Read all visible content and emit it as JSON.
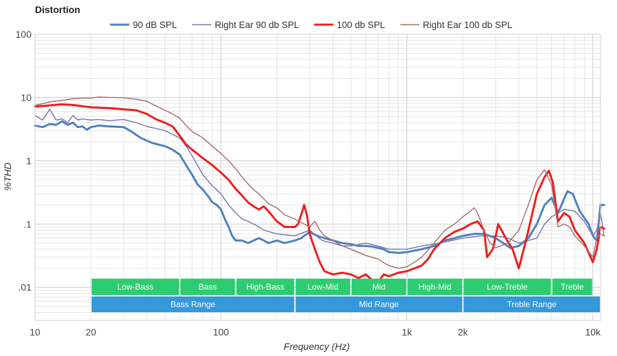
{
  "chart_data": {
    "type": "line",
    "title": "Distortion",
    "xlabel": "Frequency (Hz)",
    "ylabel": "%THD",
    "x_scale": "log",
    "y_scale": "log",
    "xlim": [
      10,
      11000
    ],
    "ylim": [
      0.003,
      100
    ],
    "grid": true,
    "legend_position": "top",
    "x_ticks": [
      {
        "value": 10,
        "label": "10"
      },
      {
        "value": 20,
        "label": "20"
      },
      {
        "value": 100,
        "label": "100"
      },
      {
        "value": 1000,
        "label": "1k"
      },
      {
        "value": 2000,
        "label": "2k"
      },
      {
        "value": 10000,
        "label": "10k"
      }
    ],
    "y_ticks": [
      {
        "value": 100,
        "label": "100"
      },
      {
        "value": 10,
        "label": "10"
      },
      {
        "value": 1,
        "label": "1"
      },
      {
        "value": 0.1,
        "label": ".1"
      },
      {
        "value": 0.01,
        "label": ".01"
      }
    ],
    "series": [
      {
        "name": "90 dB SPL",
        "color": "#4f81bd",
        "width": 3,
        "points": [
          [
            10,
            3.6
          ],
          [
            11,
            3.4
          ],
          [
            12,
            3.8
          ],
          [
            13,
            3.7
          ],
          [
            14,
            4.2
          ],
          [
            15,
            3.7
          ],
          [
            16,
            4.0
          ],
          [
            17,
            3.4
          ],
          [
            18,
            3.5
          ],
          [
            19,
            3.1
          ],
          [
            20,
            3.4
          ],
          [
            22,
            3.6
          ],
          [
            25,
            3.5
          ],
          [
            30,
            3.4
          ],
          [
            33,
            2.9
          ],
          [
            37,
            2.3
          ],
          [
            43,
            1.9
          ],
          [
            50,
            1.7
          ],
          [
            55,
            1.5
          ],
          [
            60,
            1.25
          ],
          [
            65,
            0.85
          ],
          [
            70,
            0.6
          ],
          [
            75,
            0.42
          ],
          [
            80,
            0.35
          ],
          [
            85,
            0.28
          ],
          [
            90,
            0.22
          ],
          [
            95,
            0.2
          ],
          [
            100,
            0.17
          ],
          [
            105,
            0.12
          ],
          [
            110,
            0.09
          ],
          [
            115,
            0.065
          ],
          [
            120,
            0.055
          ],
          [
            130,
            0.055
          ],
          [
            140,
            0.05
          ],
          [
            150,
            0.055
          ],
          [
            160,
            0.06
          ],
          [
            170,
            0.055
          ],
          [
            180,
            0.05
          ],
          [
            200,
            0.055
          ],
          [
            220,
            0.05
          ],
          [
            250,
            0.055
          ],
          [
            270,
            0.06
          ],
          [
            300,
            0.075
          ],
          [
            330,
            0.065
          ],
          [
            360,
            0.06
          ],
          [
            400,
            0.055
          ],
          [
            450,
            0.05
          ],
          [
            500,
            0.048
          ],
          [
            550,
            0.045
          ],
          [
            600,
            0.045
          ],
          [
            650,
            0.044
          ],
          [
            700,
            0.042
          ],
          [
            750,
            0.04
          ],
          [
            800,
            0.036
          ],
          [
            900,
            0.035
          ],
          [
            1000,
            0.036
          ],
          [
            1200,
            0.04
          ],
          [
            1400,
            0.045
          ],
          [
            1600,
            0.055
          ],
          [
            1800,
            0.06
          ],
          [
            2000,
            0.065
          ],
          [
            2300,
            0.07
          ],
          [
            2600,
            0.07
          ],
          [
            3000,
            0.06
          ],
          [
            3300,
            0.05
          ],
          [
            3600,
            0.042
          ],
          [
            4000,
            0.045
          ],
          [
            4500,
            0.06
          ],
          [
            5000,
            0.1
          ],
          [
            5500,
            0.2
          ],
          [
            6000,
            0.26
          ],
          [
            6500,
            0.15
          ],
          [
            7000,
            0.25
          ],
          [
            7300,
            0.33
          ],
          [
            7800,
            0.3
          ],
          [
            8500,
            0.16
          ],
          [
            9500,
            0.1
          ],
          [
            10000,
            0.065
          ],
          [
            10500,
            0.055
          ],
          [
            11000,
            0.2
          ],
          [
            11500,
            0.2
          ]
        ]
      },
      {
        "name": "Right Ear 90 db SPL",
        "color": "#7b79b0",
        "width": 1.5,
        "points": [
          [
            10,
            5.2
          ],
          [
            11,
            4.4
          ],
          [
            12,
            6.5
          ],
          [
            13,
            4.4
          ],
          [
            14,
            4.6
          ],
          [
            15,
            4.0
          ],
          [
            16,
            5.2
          ],
          [
            17,
            4.4
          ],
          [
            18,
            4.6
          ],
          [
            20,
            4.4
          ],
          [
            22,
            4.5
          ],
          [
            25,
            4.3
          ],
          [
            30,
            4.5
          ],
          [
            35,
            4.0
          ],
          [
            40,
            3.5
          ],
          [
            50,
            3.0
          ],
          [
            55,
            2.6
          ],
          [
            60,
            2.3
          ],
          [
            65,
            1.7
          ],
          [
            70,
            1.2
          ],
          [
            80,
            0.6
          ],
          [
            90,
            0.4
          ],
          [
            100,
            0.3
          ],
          [
            110,
            0.2
          ],
          [
            120,
            0.15
          ],
          [
            130,
            0.12
          ],
          [
            140,
            0.11
          ],
          [
            150,
            0.1
          ],
          [
            160,
            0.09
          ],
          [
            170,
            0.08
          ],
          [
            200,
            0.07
          ],
          [
            250,
            0.065
          ],
          [
            300,
            0.08
          ],
          [
            350,
            0.055
          ],
          [
            400,
            0.05
          ],
          [
            450,
            0.045
          ],
          [
            500,
            0.045
          ],
          [
            600,
            0.05
          ],
          [
            700,
            0.045
          ],
          [
            800,
            0.04
          ],
          [
            900,
            0.04
          ],
          [
            1000,
            0.04
          ],
          [
            1200,
            0.045
          ],
          [
            1500,
            0.05
          ],
          [
            2000,
            0.06
          ],
          [
            2500,
            0.065
          ],
          [
            3000,
            0.065
          ],
          [
            3500,
            0.06
          ],
          [
            4000,
            0.05
          ],
          [
            4500,
            0.055
          ],
          [
            5000,
            0.06
          ],
          [
            5500,
            0.1
          ],
          [
            6000,
            0.13
          ],
          [
            7000,
            0.17
          ],
          [
            8000,
            0.16
          ],
          [
            9000,
            0.11
          ],
          [
            10000,
            0.065
          ],
          [
            10500,
            0.08
          ],
          [
            11000,
            0.15
          ],
          [
            11500,
            0.065
          ]
        ]
      },
      {
        "name": "100 db SPL",
        "color": "#f01c1c",
        "width": 3,
        "points": [
          [
            10,
            7.2
          ],
          [
            12,
            7.5
          ],
          [
            14,
            7.8
          ],
          [
            16,
            7.6
          ],
          [
            18,
            7.3
          ],
          [
            20,
            7.0
          ],
          [
            25,
            6.8
          ],
          [
            30,
            6.5
          ],
          [
            35,
            6.3
          ],
          [
            40,
            5.5
          ],
          [
            45,
            4.5
          ],
          [
            50,
            4.0
          ],
          [
            55,
            3.5
          ],
          [
            60,
            2.5
          ],
          [
            65,
            1.8
          ],
          [
            70,
            1.5
          ],
          [
            80,
            1.1
          ],
          [
            90,
            0.85
          ],
          [
            100,
            0.65
          ],
          [
            110,
            0.5
          ],
          [
            120,
            0.36
          ],
          [
            130,
            0.28
          ],
          [
            140,
            0.22
          ],
          [
            150,
            0.19
          ],
          [
            160,
            0.17
          ],
          [
            170,
            0.19
          ],
          [
            180,
            0.16
          ],
          [
            200,
            0.11
          ],
          [
            220,
            0.09
          ],
          [
            250,
            0.09
          ],
          [
            260,
            0.1
          ],
          [
            270,
            0.14
          ],
          [
            280,
            0.2
          ],
          [
            290,
            0.14
          ],
          [
            300,
            0.07
          ],
          [
            320,
            0.04
          ],
          [
            340,
            0.025
          ],
          [
            360,
            0.018
          ],
          [
            400,
            0.016
          ],
          [
            450,
            0.017
          ],
          [
            500,
            0.016
          ],
          [
            550,
            0.014
          ],
          [
            600,
            0.016
          ],
          [
            650,
            0.013
          ],
          [
            700,
            0.012
          ],
          [
            750,
            0.016
          ],
          [
            800,
            0.015
          ],
          [
            900,
            0.017
          ],
          [
            1000,
            0.018
          ],
          [
            1100,
            0.02
          ],
          [
            1200,
            0.022
          ],
          [
            1300,
            0.028
          ],
          [
            1400,
            0.04
          ],
          [
            1600,
            0.06
          ],
          [
            1800,
            0.075
          ],
          [
            2000,
            0.085
          ],
          [
            2200,
            0.1
          ],
          [
            2400,
            0.11
          ],
          [
            2600,
            0.08
          ],
          [
            2700,
            0.03
          ],
          [
            2900,
            0.04
          ],
          [
            3100,
            0.1
          ],
          [
            3400,
            0.06
          ],
          [
            3700,
            0.04
          ],
          [
            4000,
            0.02
          ],
          [
            4400,
            0.06
          ],
          [
            5000,
            0.3
          ],
          [
            5500,
            0.55
          ],
          [
            5800,
            0.7
          ],
          [
            6100,
            0.45
          ],
          [
            6500,
            0.11
          ],
          [
            7000,
            0.15
          ],
          [
            7500,
            0.13
          ],
          [
            8000,
            0.08
          ],
          [
            9000,
            0.05
          ],
          [
            10000,
            0.025
          ],
          [
            10500,
            0.04
          ],
          [
            11000,
            0.09
          ],
          [
            11500,
            0.085
          ]
        ]
      },
      {
        "name": "Right Ear 100 db SPL",
        "color": "#a97070",
        "width": 1.5,
        "points": [
          [
            10,
            7.5
          ],
          [
            12,
            8.5
          ],
          [
            14,
            9.0
          ],
          [
            16,
            9.6
          ],
          [
            18,
            9.8
          ],
          [
            20,
            9.8
          ],
          [
            22,
            10.2
          ],
          [
            25,
            10.0
          ],
          [
            30,
            9.9
          ],
          [
            35,
            9.4
          ],
          [
            40,
            8.7
          ],
          [
            45,
            7.3
          ],
          [
            50,
            6.3
          ],
          [
            55,
            5.5
          ],
          [
            60,
            4.7
          ],
          [
            65,
            3.6
          ],
          [
            70,
            2.9
          ],
          [
            80,
            2.3
          ],
          [
            90,
            1.7
          ],
          [
            100,
            1.3
          ],
          [
            110,
            1.0
          ],
          [
            120,
            0.75
          ],
          [
            130,
            0.55
          ],
          [
            140,
            0.43
          ],
          [
            150,
            0.35
          ],
          [
            160,
            0.3
          ],
          [
            170,
            0.25
          ],
          [
            180,
            0.21
          ],
          [
            200,
            0.18
          ],
          [
            220,
            0.14
          ],
          [
            250,
            0.12
          ],
          [
            300,
            0.09
          ],
          [
            320,
            0.11
          ],
          [
            340,
            0.08
          ],
          [
            360,
            0.065
          ],
          [
            400,
            0.055
          ],
          [
            450,
            0.045
          ],
          [
            500,
            0.04
          ],
          [
            600,
            0.032
          ],
          [
            700,
            0.028
          ],
          [
            800,
            0.022
          ],
          [
            900,
            0.02
          ],
          [
            1000,
            0.021
          ],
          [
            1100,
            0.025
          ],
          [
            1200,
            0.03
          ],
          [
            1400,
            0.05
          ],
          [
            1600,
            0.08
          ],
          [
            1800,
            0.1
          ],
          [
            2000,
            0.13
          ],
          [
            2200,
            0.16
          ],
          [
            2300,
            0.18
          ],
          [
            2400,
            0.15
          ],
          [
            2600,
            0.08
          ],
          [
            2800,
            0.05
          ],
          [
            3000,
            0.042
          ],
          [
            3500,
            0.05
          ],
          [
            4000,
            0.08
          ],
          [
            4500,
            0.2
          ],
          [
            5000,
            0.5
          ],
          [
            5500,
            0.72
          ],
          [
            6000,
            0.42
          ],
          [
            6500,
            0.09
          ],
          [
            7000,
            0.1
          ],
          [
            7500,
            0.09
          ],
          [
            8000,
            0.065
          ],
          [
            9000,
            0.045
          ],
          [
            10000,
            0.03
          ],
          [
            10500,
            0.06
          ],
          [
            11000,
            0.07
          ],
          [
            11500,
            0.065
          ]
        ]
      }
    ],
    "bands": {
      "row1": [
        {
          "label": "Low-Bass",
          "from": 20,
          "to": 60
        },
        {
          "label": "Bass",
          "from": 60,
          "to": 120
        },
        {
          "label": "High-Bass",
          "from": 120,
          "to": 250
        },
        {
          "label": "Low-Mid",
          "from": 250,
          "to": 500
        },
        {
          "label": "Mid",
          "from": 500,
          "to": 1000
        },
        {
          "label": "High-Mid",
          "from": 1000,
          "to": 2000
        },
        {
          "label": "Low-Treble",
          "from": 2000,
          "to": 6000
        },
        {
          "label": "Treble",
          "from": 6000,
          "to": 10000
        }
      ],
      "row2": [
        {
          "label": "Bass Range",
          "from": 20,
          "to": 250
        },
        {
          "label": "Mid Range",
          "from": 250,
          "to": 2000
        },
        {
          "label": "Treble Range",
          "from": 2000,
          "to": 11000
        }
      ],
      "row1_color": "#2ecc71",
      "row2_color": "#3498db"
    }
  }
}
